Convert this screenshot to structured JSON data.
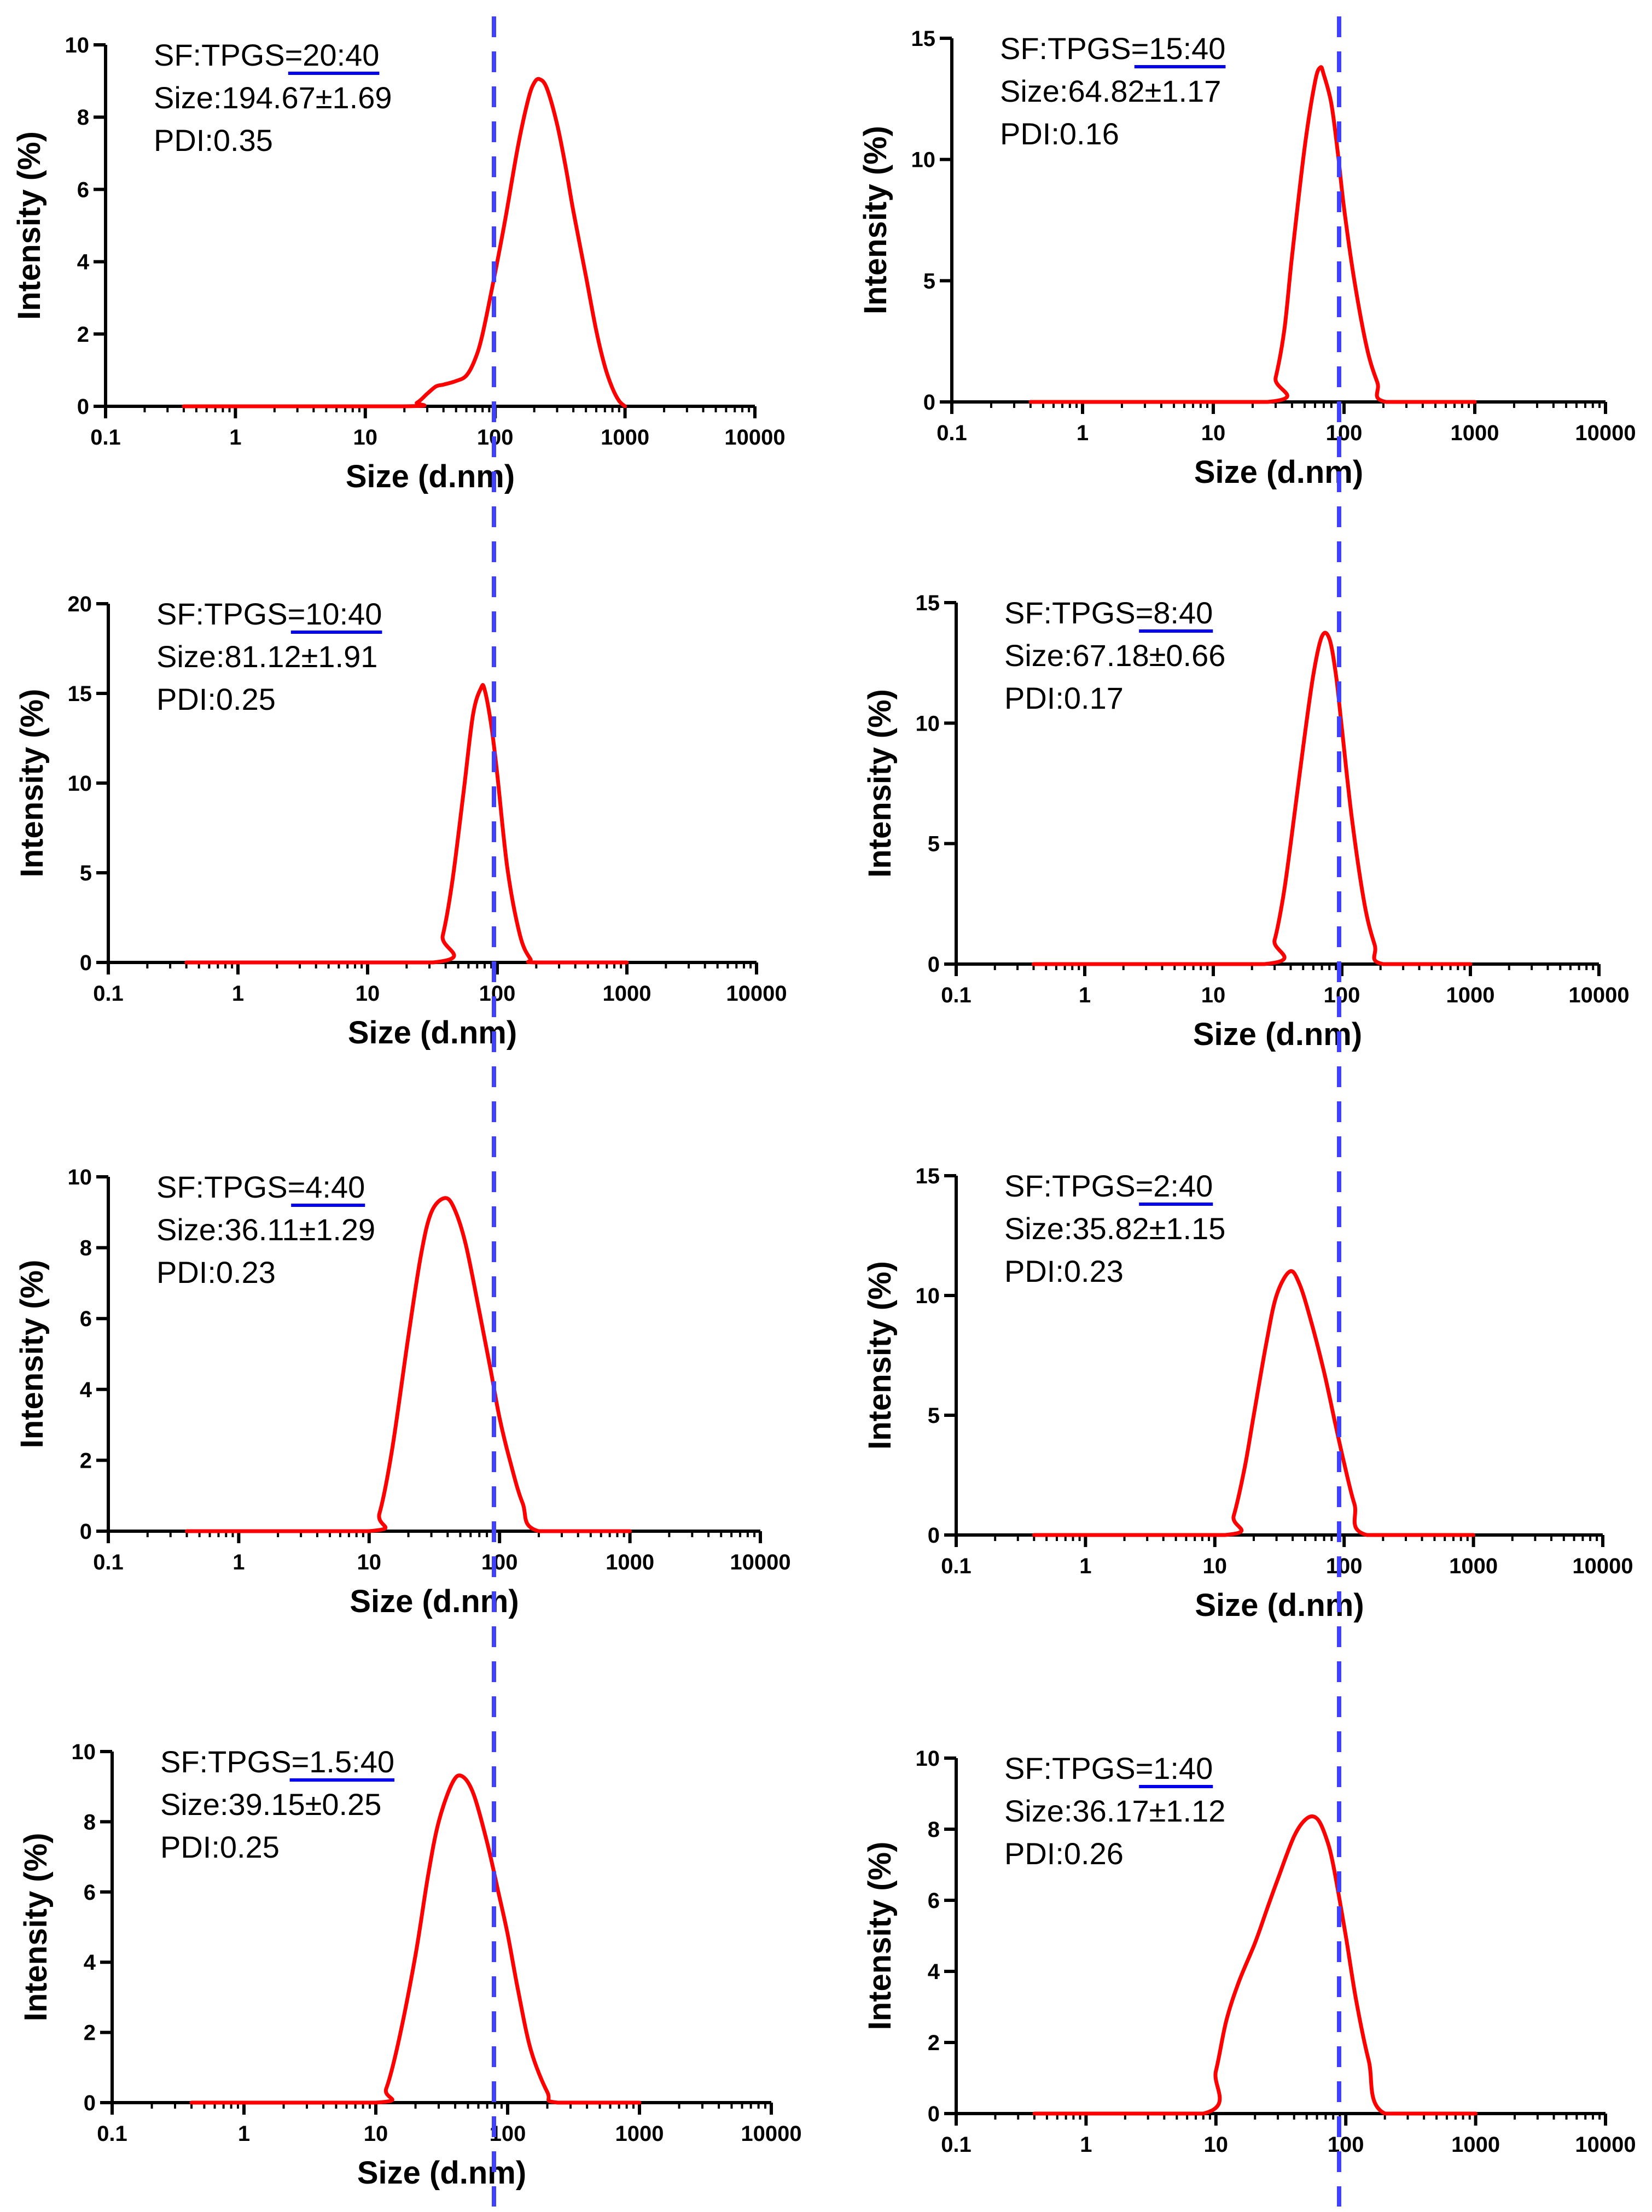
{
  "colors": {
    "curve": "#ff0000",
    "reference_line": "#4040ff",
    "underline": "#0000ee",
    "axis": "#000000"
  },
  "chart_data": [
    {
      "type": "line",
      "xscale": "log",
      "xlabel": "Size (d.nm)",
      "ylabel": "Intensity (%)",
      "xlim": [
        0.1,
        10000
      ],
      "ylim": [
        0,
        10
      ],
      "xticks": [
        "0.1",
        "1",
        "10",
        "100",
        "1000",
        "10000"
      ],
      "yticks": [
        "0",
        "2",
        "4",
        "6",
        "8",
        "10"
      ],
      "reference_x": 100,
      "annotation": [
        "SF:TPGS=20:40",
        "Size:194.67±1.69",
        "PDI:0.35"
      ],
      "series": [
        {
          "name": "SF:TPGS=20:40",
          "x": [
            0.4,
            20,
            25,
            30,
            35,
            40,
            50,
            60,
            70,
            80,
            100,
            120,
            150,
            180,
            200,
            220,
            250,
            300,
            350,
            400,
            500,
            600,
            700,
            800,
            900,
            1000
          ],
          "y": [
            0,
            0,
            0.1,
            0.35,
            0.55,
            0.6,
            0.7,
            0.85,
            1.3,
            2.0,
            3.7,
            5.2,
            7.2,
            8.5,
            8.95,
            9.05,
            8.8,
            7.8,
            6.6,
            5.4,
            3.6,
            2.1,
            1.1,
            0.5,
            0.15,
            0
          ]
        }
      ]
    },
    {
      "type": "line",
      "xscale": "log",
      "xlabel": "Size (d.nm)",
      "ylabel": "Intensity (%)",
      "xlim": [
        0.1,
        10000
      ],
      "ylim": [
        0,
        15
      ],
      "xticks": [
        "0.1",
        "1",
        "10",
        "100",
        "1000",
        "10000"
      ],
      "yticks": [
        "0",
        "5",
        "10",
        "15"
      ],
      "reference_x": 100,
      "annotation": [
        "SF:TPGS=15:40",
        "Size:64.82±1.17",
        "PDI:0.16"
      ],
      "series": [
        {
          "name": "SF:TPGS=15:40",
          "x": [
            0.4,
            26,
            30,
            35,
            40,
            50,
            60,
            66,
            70,
            80,
            90,
            100,
            120,
            150,
            180,
            210,
            1000
          ],
          "y": [
            0,
            0,
            1.0,
            3.0,
            6.0,
            10.5,
            13.2,
            13.8,
            13.5,
            12.3,
            10.2,
            8.0,
            5.0,
            2.2,
            0.8,
            0,
            0
          ]
        }
      ]
    },
    {
      "type": "line",
      "xscale": "log",
      "xlabel": "Size (d.nm)",
      "ylabel": "Intensity (%)",
      "xlim": [
        0.1,
        10000
      ],
      "ylim": [
        0,
        20
      ],
      "xticks": [
        "0.1",
        "1",
        "10",
        "100",
        "1000",
        "10000"
      ],
      "yticks": [
        "0",
        "5",
        "10",
        "15",
        "20"
      ],
      "reference_x": 100,
      "annotation": [
        "SF:TPGS=10:40",
        "Size:81.12±1.91",
        "PDI:0.25"
      ],
      "series": [
        {
          "name": "SF:TPGS=10:40",
          "x": [
            0.4,
            32,
            38,
            45,
            55,
            65,
            75,
            80,
            90,
            100,
            120,
            150,
            180,
            200,
            1000
          ],
          "y": [
            0,
            0,
            1.5,
            4.5,
            9.5,
            13.8,
            15.3,
            15.2,
            13.2,
            10.5,
            5.2,
            1.5,
            0.2,
            0,
            0
          ]
        }
      ]
    },
    {
      "type": "line",
      "xscale": "log",
      "xlabel": "Size (d.nm)",
      "ylabel": "Intensity (%)",
      "xlim": [
        0.1,
        10000
      ],
      "ylim": [
        0,
        15
      ],
      "xticks": [
        "0.1",
        "1",
        "10",
        "100",
        "1000",
        "10000"
      ],
      "yticks": [
        "0",
        "5",
        "10",
        "15"
      ],
      "reference_x": 100,
      "annotation": [
        "SF:TPGS=8:40",
        "Size:67.18±0.66",
        "PDI:0.17"
      ],
      "series": [
        {
          "name": "SF:TPGS=8:40",
          "x": [
            0.4,
            25,
            30,
            35,
            40,
            50,
            60,
            70,
            80,
            90,
            100,
            120,
            150,
            180,
            210,
            1000
          ],
          "y": [
            0,
            0,
            1.0,
            2.8,
            5.0,
            9.0,
            12.0,
            13.6,
            13.5,
            12.0,
            9.8,
            6.0,
            2.5,
            0.8,
            0,
            0
          ]
        }
      ]
    },
    {
      "type": "line",
      "xscale": "log",
      "xlabel": "Size (d.nm)",
      "ylabel": "Intensity (%)",
      "xlim": [
        0.1,
        10000
      ],
      "ylim": [
        0,
        10
      ],
      "xticks": [
        "0.1",
        "1",
        "10",
        "100",
        "1000",
        "10000"
      ],
      "yticks": [
        "0",
        "2",
        "4",
        "6",
        "8",
        "10"
      ],
      "reference_x": 100,
      "annotation": [
        "SF:TPGS=4:40",
        "Size:36.11±1.29",
        "PDI:0.23"
      ],
      "series": [
        {
          "name": "SF:TPGS=4:40",
          "x": [
            0.4,
            10,
            12,
            15,
            20,
            25,
            30,
            38,
            45,
            55,
            70,
            85,
            100,
            120,
            150,
            200,
            1000
          ],
          "y": [
            0,
            0,
            0.5,
            2.3,
            5.5,
            7.8,
            9.0,
            9.4,
            9.1,
            8.1,
            6.2,
            4.6,
            3.2,
            2.0,
            0.8,
            0,
            0
          ]
        }
      ]
    },
    {
      "type": "line",
      "xscale": "log",
      "xlabel": "Size (d.nm)",
      "ylabel": "Intensity (%)",
      "xlim": [
        0.1,
        10000
      ],
      "ylim": [
        0,
        15
      ],
      "xticks": [
        "0.1",
        "1",
        "10",
        "100",
        "1000",
        "10000"
      ],
      "yticks": [
        "0",
        "5",
        "10",
        "15"
      ],
      "reference_x": 100,
      "annotation": [
        "SF:TPGS=2:40",
        "Size:35.82±1.15",
        "PDI:0.23"
      ],
      "series": [
        {
          "name": "SF:TPGS=2:40",
          "x": [
            0.4,
            12,
            14,
            17,
            20,
            25,
            30,
            38,
            45,
            55,
            70,
            85,
            100,
            120,
            150,
            1000
          ],
          "y": [
            0,
            0,
            0.8,
            2.8,
            5.0,
            8.0,
            10.0,
            11.0,
            10.5,
            9.0,
            6.8,
            4.7,
            3.0,
            1.3,
            0,
            0
          ]
        }
      ]
    },
    {
      "type": "line",
      "xscale": "log",
      "xlabel": "Size (d.nm)",
      "ylabel": "Intensity (%)",
      "xlim": [
        0.1,
        10000
      ],
      "ylim": [
        0,
        10
      ],
      "xticks": [
        "0.1",
        "1",
        "10",
        "100",
        "1000",
        "10000"
      ],
      "yticks": [
        "0",
        "2",
        "4",
        "6",
        "8",
        "10"
      ],
      "reference_x": 100,
      "annotation": [
        "SF:TPGS=1.5:40",
        "Size:39.15±0.25",
        "PDI:0.25"
      ],
      "series": [
        {
          "name": "SF:TPGS=1.5:40",
          "x": [
            0.4,
            10,
            12,
            15,
            20,
            25,
            30,
            38,
            45,
            55,
            70,
            85,
            100,
            120,
            150,
            200,
            240,
            1000
          ],
          "y": [
            0,
            0,
            0.4,
            1.8,
            4.2,
            6.5,
            8.0,
            9.1,
            9.3,
            8.8,
            7.4,
            6.0,
            4.8,
            3.2,
            1.5,
            0.3,
            0,
            0
          ]
        }
      ]
    },
    {
      "type": "line",
      "xscale": "log",
      "xlabel": "",
      "ylabel": "Intensity (%)",
      "xlim": [
        0.1,
        10000
      ],
      "ylim": [
        0,
        10
      ],
      "xticks": [
        "0.1",
        "1",
        "10",
        "100",
        "1000",
        "10000"
      ],
      "yticks": [
        "0",
        "2",
        "4",
        "6",
        "8",
        "10"
      ],
      "reference_x": 100,
      "annotation": [
        "SF:TPGS=1:40",
        "Size:36.17±1.12",
        "PDI:0.26"
      ],
      "series": [
        {
          "name": "SF:TPGS=1:40",
          "x": [
            0.4,
            8,
            10,
            12,
            15,
            20,
            25,
            30,
            40,
            50,
            60,
            70,
            80,
            100,
            120,
            150,
            200,
            1000
          ],
          "y": [
            0,
            0,
            1.2,
            2.6,
            3.7,
            4.8,
            5.8,
            6.6,
            7.8,
            8.3,
            8.3,
            7.8,
            7.0,
            5.0,
            3.2,
            1.5,
            0,
            0
          ]
        }
      ]
    }
  ]
}
